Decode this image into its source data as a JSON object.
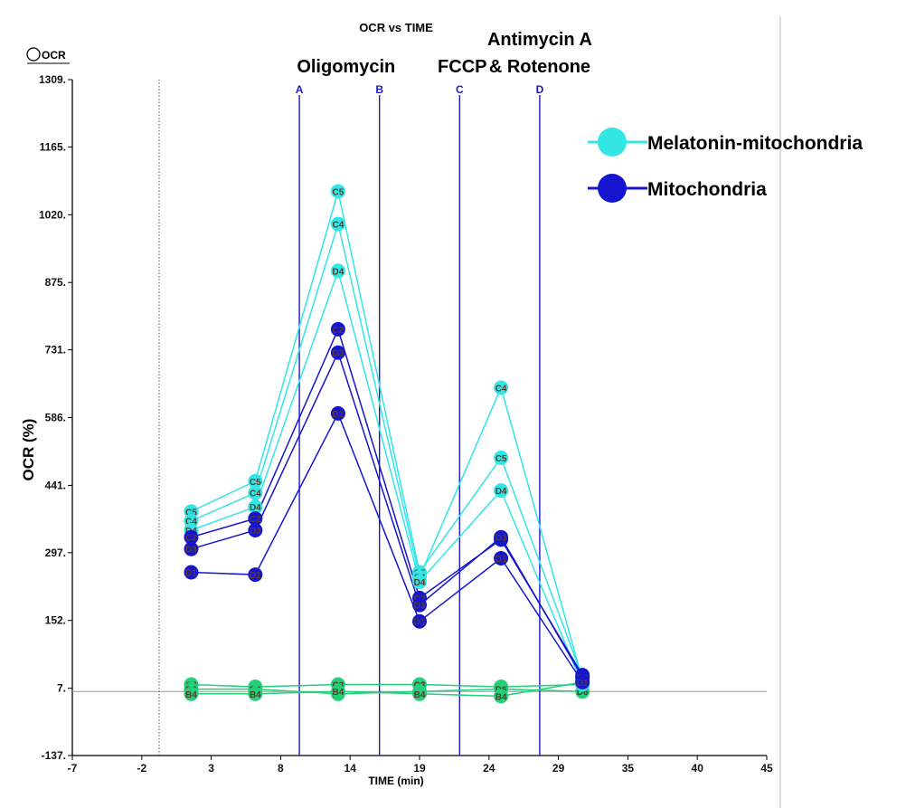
{
  "chart_data": {
    "type": "line",
    "title": "OCR vs TIME",
    "corner_label": "OCR",
    "xlabel": "TIME (min)",
    "ylabel": "OCR (%)",
    "xlim": [
      -7,
      45
    ],
    "ylim": [
      -137,
      1309
    ],
    "x_ticks": [
      "-7",
      "-2",
      "3",
      "8",
      "14",
      "19",
      "24",
      "29",
      "35",
      "40",
      "45"
    ],
    "y_ticks": [
      "1309",
      "1165",
      "1020",
      "875",
      "731",
      "586",
      "441",
      "297",
      "152",
      "7",
      "-137"
    ],
    "baseline_y": 0,
    "dotted_x": -0.5,
    "grid": false,
    "legend_position": "top-right",
    "legend": [
      {
        "name": "Melatonin-mitochondria",
        "color": "#33e6e6"
      },
      {
        "name": "Mitochondria",
        "color": "#1515d0"
      }
    ],
    "injections": [
      {
        "letter": "A",
        "x": 10
      },
      {
        "letter": "B",
        "x": 16
      },
      {
        "letter": "C",
        "x": 22
      },
      {
        "letter": "D",
        "x": 28
      }
    ],
    "injection_labels": [
      {
        "text": "Oligomycin",
        "x": 13.5
      },
      {
        "text": "FCCP",
        "x": 22.2
      },
      {
        "text": "Antimycin A",
        "x": 28
      },
      {
        "text": "& Rotenone",
        "x": 28
      }
    ],
    "x_times": [
      1.9,
      6.7,
      12.9,
      19,
      25.1,
      31.2
    ],
    "series": [
      {
        "name": "C5",
        "group": "Melatonin-mitochondria",
        "color": "#33e6e6",
        "values": [
          385,
          450,
          1070,
          255,
          500,
          30
        ]
      },
      {
        "name": "C4",
        "group": "Melatonin-mitochondria",
        "color": "#33e6e6",
        "values": [
          365,
          425,
          1000,
          245,
          650,
          25
        ]
      },
      {
        "name": "D4",
        "group": "Melatonin-mitochondria",
        "color": "#33e6e6",
        "values": [
          345,
          395,
          900,
          235,
          430,
          15
        ]
      },
      {
        "name": "C2",
        "group": "Mitochondria",
        "color": "#1515d0",
        "values": [
          330,
          370,
          775,
          200,
          325,
          35
        ]
      },
      {
        "name": "D3",
        "group": "Mitochondria",
        "color": "#1515d0",
        "values": [
          305,
          345,
          725,
          185,
          330,
          30
        ]
      },
      {
        "name": "D1",
        "group": "Mitochondria",
        "color": "#1515d0",
        "values": [
          255,
          250,
          595,
          150,
          285,
          20
        ]
      },
      {
        "name": "C3",
        "group": "background",
        "color": "#22d07a",
        "values": [
          15,
          10,
          15,
          15,
          10,
          15
        ]
      },
      {
        "name": "D6",
        "group": "background",
        "color": "#22d07a",
        "values": [
          5,
          5,
          -5,
          0,
          5,
          0
        ]
      },
      {
        "name": "B4",
        "group": "background",
        "color": "#22d07a",
        "values": [
          -5,
          -5,
          0,
          -5,
          -10,
          20
        ]
      }
    ]
  }
}
